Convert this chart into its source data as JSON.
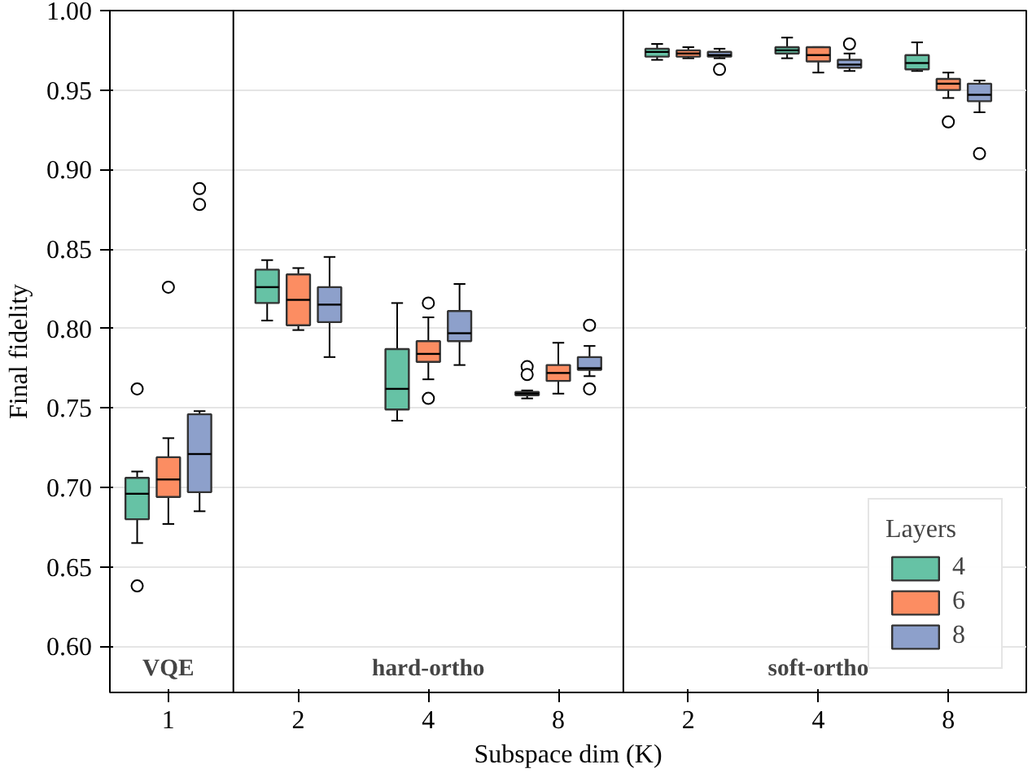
{
  "chart_data": {
    "type": "box",
    "xlabel": "Subspace dim (K)",
    "ylabel": "Final fidelity",
    "legend_title": "Layers",
    "categories": [
      "1",
      "2",
      "4",
      "8",
      "2",
      "4",
      "8"
    ],
    "ylim": [
      0.571,
      1.0
    ],
    "yticks": [
      {
        "value": 0.6,
        "label": "0.60"
      },
      {
        "value": 0.65,
        "label": "0.65"
      },
      {
        "value": 0.7,
        "label": "0.70"
      },
      {
        "value": 0.75,
        "label": "0.75"
      },
      {
        "value": 0.8,
        "label": "0.80"
      },
      {
        "value": 0.85,
        "label": "0.85"
      },
      {
        "value": 0.9,
        "label": "0.90"
      },
      {
        "value": 0.95,
        "label": "0.95"
      },
      {
        "value": 1.0,
        "label": "1.00"
      }
    ],
    "grid": "y",
    "legend": "bottom right",
    "annotations": [
      "VQE",
      "hard-ortho",
      "soft-ortho"
    ],
    "series": [
      {
        "name": "4",
        "color": "#66c2a5",
        "boxes": [
          {
            "low": 0.665,
            "q1": 0.68,
            "median": 0.696,
            "q3": 0.706,
            "high": 0.71,
            "outliers": [
              0.762,
              0.638
            ]
          },
          {
            "low": 0.805,
            "q1": 0.816,
            "median": 0.826,
            "q3": 0.837,
            "high": 0.843
          },
          {
            "low": 0.742,
            "q1": 0.749,
            "median": 0.762,
            "q3": 0.787,
            "high": 0.816
          },
          {
            "low": 0.756,
            "q1": 0.758,
            "median": 0.759,
            "q3": 0.76,
            "high": 0.761,
            "outliers": [
              0.776,
              0.771
            ]
          },
          {
            "low": 0.969,
            "q1": 0.971,
            "median": 0.974,
            "q3": 0.976,
            "high": 0.979
          },
          {
            "low": 0.97,
            "q1": 0.973,
            "median": 0.975,
            "q3": 0.977,
            "high": 0.983
          },
          {
            "low": 0.962,
            "q1": 0.963,
            "median": 0.967,
            "q3": 0.972,
            "high": 0.98
          }
        ]
      },
      {
        "name": "6",
        "color": "#fc8d62",
        "boxes": [
          {
            "low": 0.677,
            "q1": 0.694,
            "median": 0.705,
            "q3": 0.719,
            "high": 0.731,
            "outliers": [
              0.826
            ]
          },
          {
            "low": 0.799,
            "q1": 0.802,
            "median": 0.818,
            "q3": 0.834,
            "high": 0.838
          },
          {
            "low": 0.768,
            "q1": 0.779,
            "median": 0.784,
            "q3": 0.792,
            "high": 0.807,
            "outliers": [
              0.816,
              0.756
            ]
          },
          {
            "low": 0.759,
            "q1": 0.767,
            "median": 0.772,
            "q3": 0.777,
            "high": 0.791
          },
          {
            "low": 0.97,
            "q1": 0.971,
            "median": 0.973,
            "q3": 0.975,
            "high": 0.977
          },
          {
            "low": 0.961,
            "q1": 0.968,
            "median": 0.972,
            "q3": 0.977,
            "high": 0.977
          },
          {
            "low": 0.945,
            "q1": 0.95,
            "median": 0.954,
            "q3": 0.957,
            "high": 0.961,
            "outliers": [
              0.93
            ]
          }
        ]
      },
      {
        "name": "8",
        "color": "#8da0cb",
        "boxes": [
          {
            "low": 0.685,
            "q1": 0.697,
            "median": 0.721,
            "q3": 0.746,
            "high": 0.748,
            "outliers": [
              0.888,
              0.878
            ]
          },
          {
            "low": 0.782,
            "q1": 0.804,
            "median": 0.815,
            "q3": 0.826,
            "high": 0.845
          },
          {
            "low": 0.777,
            "q1": 0.792,
            "median": 0.797,
            "q3": 0.811,
            "high": 0.828
          },
          {
            "low": 0.77,
            "q1": 0.774,
            "median": 0.775,
            "q3": 0.782,
            "high": 0.789,
            "outliers": [
              0.802,
              0.762
            ]
          },
          {
            "low": 0.97,
            "q1": 0.971,
            "median": 0.972,
            "q3": 0.974,
            "high": 0.976,
            "outliers": [
              0.963
            ]
          },
          {
            "low": 0.962,
            "q1": 0.964,
            "median": 0.966,
            "q3": 0.969,
            "high": 0.973,
            "outliers": [
              0.979
            ]
          },
          {
            "low": 0.936,
            "q1": 0.943,
            "median": 0.947,
            "q3": 0.954,
            "high": 0.956,
            "outliers": [
              0.91
            ]
          }
        ]
      }
    ]
  }
}
